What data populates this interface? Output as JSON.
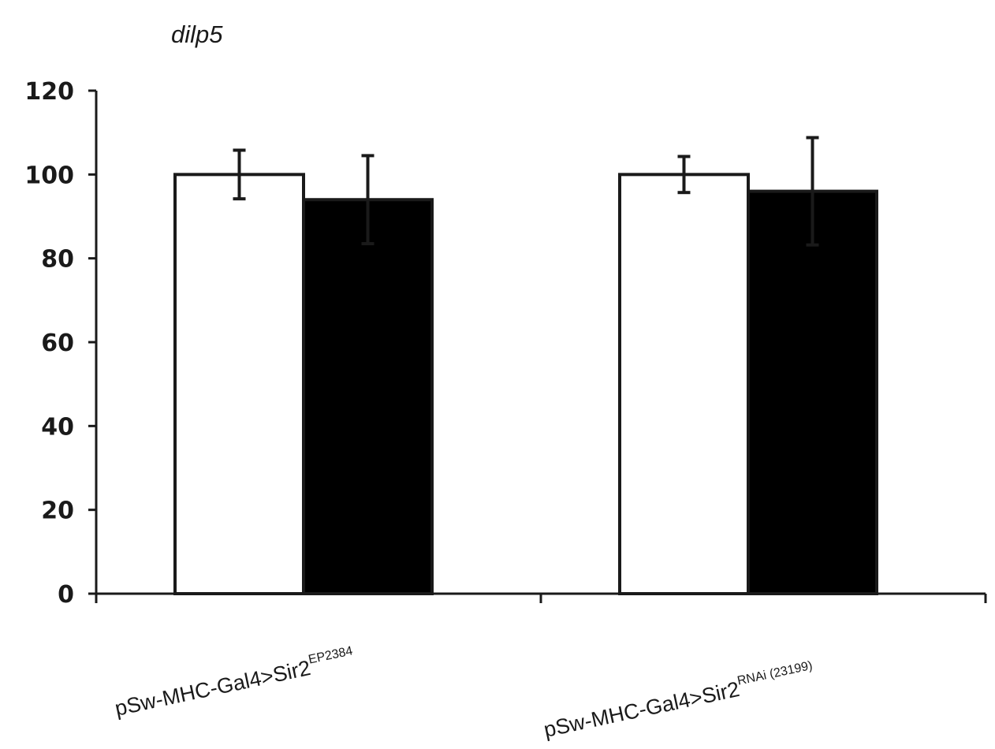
{
  "chart_data": {
    "type": "bar",
    "title": "dilp5",
    "xlabel": "",
    "ylabel": "",
    "ylim": [
      0,
      120
    ],
    "yticks": [
      "0",
      "20",
      "40",
      "60",
      "80",
      "100",
      "120"
    ],
    "grid": false,
    "categories": [
      {
        "base": "pSw-MHC-Gal4>Sir2",
        "sup": "EP2384"
      },
      {
        "base": "pSw-MHC-Gal4>Sir2",
        "sup": "RNAi (23199)"
      }
    ],
    "series": [
      {
        "color": "#ffffff",
        "values": [
          100,
          100
        ],
        "errors": [
          5.8,
          4.3
        ]
      },
      {
        "color": "#000000",
        "values": [
          94,
          96
        ],
        "errors": [
          10.5,
          12.8
        ]
      }
    ]
  }
}
